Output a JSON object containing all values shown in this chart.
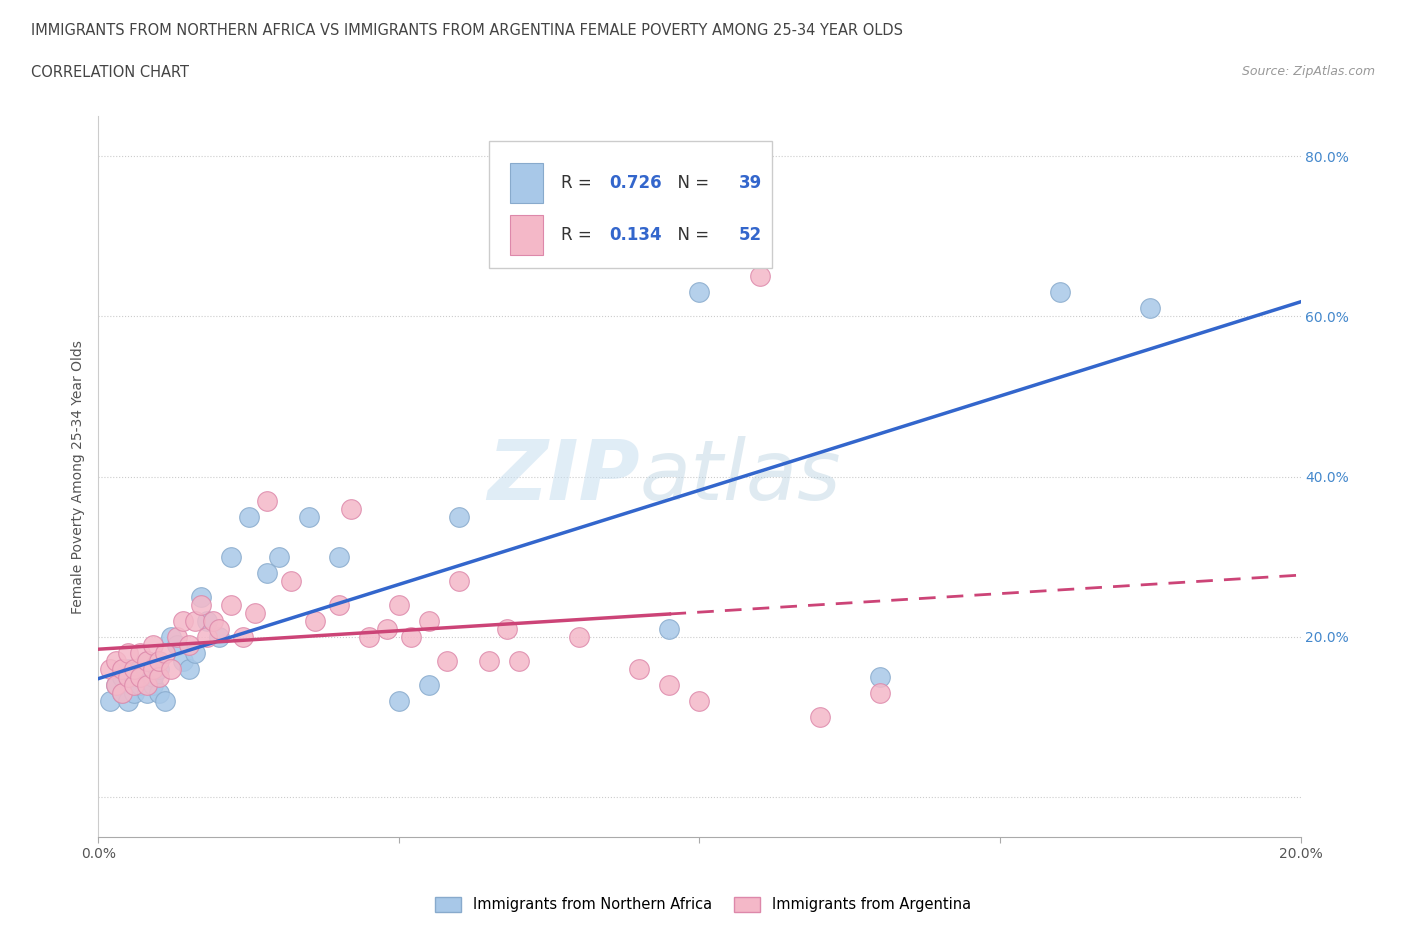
{
  "title_line1": "IMMIGRANTS FROM NORTHERN AFRICA VS IMMIGRANTS FROM ARGENTINA FEMALE POVERTY AMONG 25-34 YEAR OLDS",
  "title_line2": "CORRELATION CHART",
  "source": "Source: ZipAtlas.com",
  "ylabel": "Female Poverty Among 25-34 Year Olds",
  "xlim": [
    0.0,
    0.2
  ],
  "ylim": [
    -0.05,
    0.85
  ],
  "R_blue": "0.726",
  "N_blue": "39",
  "R_pink": "0.134",
  "N_pink": "52",
  "blue_color": "#a8c8e8",
  "pink_color": "#f4b8c8",
  "blue_line_color": "#3366cc",
  "pink_line_color": "#cc4477",
  "legend_text_color": "#333333",
  "legend_num_color": "#3366cc",
  "right_axis_color": "#4488cc",
  "watermark_color": "#d0e8f4",
  "blue_scatter_x": [
    0.002,
    0.003,
    0.004,
    0.004,
    0.005,
    0.005,
    0.006,
    0.006,
    0.007,
    0.007,
    0.008,
    0.008,
    0.009,
    0.009,
    0.01,
    0.01,
    0.011,
    0.012,
    0.013,
    0.014,
    0.015,
    0.016,
    0.017,
    0.018,
    0.02,
    0.022,
    0.025,
    0.028,
    0.03,
    0.035,
    0.04,
    0.05,
    0.055,
    0.06,
    0.095,
    0.1,
    0.13,
    0.16,
    0.175
  ],
  "blue_scatter_y": [
    0.12,
    0.14,
    0.13,
    0.15,
    0.12,
    0.16,
    0.13,
    0.15,
    0.14,
    0.16,
    0.13,
    0.17,
    0.14,
    0.15,
    0.16,
    0.13,
    0.12,
    0.2,
    0.19,
    0.17,
    0.16,
    0.18,
    0.25,
    0.22,
    0.2,
    0.3,
    0.35,
    0.28,
    0.3,
    0.35,
    0.3,
    0.12,
    0.14,
    0.35,
    0.21,
    0.63,
    0.15,
    0.63,
    0.61
  ],
  "pink_scatter_x": [
    0.002,
    0.003,
    0.003,
    0.004,
    0.004,
    0.005,
    0.005,
    0.006,
    0.006,
    0.007,
    0.007,
    0.008,
    0.008,
    0.009,
    0.009,
    0.01,
    0.01,
    0.011,
    0.012,
    0.013,
    0.014,
    0.015,
    0.016,
    0.017,
    0.018,
    0.019,
    0.02,
    0.022,
    0.024,
    0.026,
    0.028,
    0.032,
    0.036,
    0.04,
    0.042,
    0.045,
    0.048,
    0.05,
    0.052,
    0.055,
    0.058,
    0.06,
    0.065,
    0.068,
    0.07,
    0.08,
    0.09,
    0.095,
    0.1,
    0.11,
    0.12,
    0.13
  ],
  "pink_scatter_y": [
    0.16,
    0.14,
    0.17,
    0.13,
    0.16,
    0.15,
    0.18,
    0.14,
    0.16,
    0.15,
    0.18,
    0.14,
    0.17,
    0.16,
    0.19,
    0.15,
    0.17,
    0.18,
    0.16,
    0.2,
    0.22,
    0.19,
    0.22,
    0.24,
    0.2,
    0.22,
    0.21,
    0.24,
    0.2,
    0.23,
    0.37,
    0.27,
    0.22,
    0.24,
    0.36,
    0.2,
    0.21,
    0.24,
    0.2,
    0.22,
    0.17,
    0.27,
    0.17,
    0.21,
    0.17,
    0.2,
    0.16,
    0.14,
    0.12,
    0.65,
    0.1,
    0.13
  ]
}
